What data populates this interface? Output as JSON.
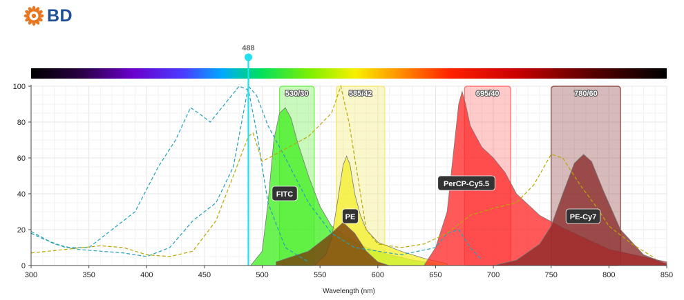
{
  "brand": {
    "name": "BD",
    "logo_icon": "bd-sunburst-logo-icon",
    "logo_color": "#e87722",
    "text_color": "#1f4e98"
  },
  "chart_data": {
    "type": "area",
    "xlabel": "Wavelength (nm)",
    "ylabel": "",
    "xlim": [
      300,
      850
    ],
    "ylim": [
      0,
      100
    ],
    "x_ticks": [
      300,
      350,
      400,
      450,
      500,
      550,
      600,
      650,
      700,
      750,
      800,
      850
    ],
    "y_ticks": [
      0,
      20,
      40,
      60,
      80,
      100
    ],
    "grid": true,
    "laser": {
      "wavelength": 488,
      "label": "488",
      "color": "#22e0ee"
    },
    "filters": [
      {
        "label": "530/30",
        "center": 530,
        "width": 30,
        "color": "#66ee44"
      },
      {
        "label": "585/42",
        "center": 585,
        "width": 42,
        "color": "#f2e866"
      },
      {
        "label": "695/40",
        "center": 695,
        "width": 40,
        "color": "#ff6666"
      },
      {
        "label": "780/60",
        "center": 780,
        "width": 60,
        "color": "#8b3a3a"
      }
    ],
    "emission_series": [
      {
        "name": "FITC",
        "color": "#44ee22",
        "x": [
          490,
          500,
          505,
          510,
          515,
          520,
          525,
          530,
          540,
          550,
          560,
          575,
          590,
          610,
          630,
          650
        ],
        "y": [
          0,
          8,
          35,
          70,
          85,
          88,
          82,
          70,
          50,
          33,
          22,
          15,
          10,
          6,
          3,
          1
        ]
      },
      {
        "name": "PE",
        "color": "#f5f032",
        "x": [
          545,
          555,
          560,
          565,
          570,
          573,
          576,
          580,
          585,
          590,
          600,
          620,
          640,
          660
        ],
        "y": [
          0,
          6,
          15,
          35,
          56,
          61,
          56,
          40,
          28,
          20,
          13,
          8,
          4,
          1
        ]
      },
      {
        "name": "PerCP-Cy5.5",
        "color": "#ff2a2a",
        "x": [
          640,
          650,
          660,
          665,
          670,
          673,
          676,
          680,
          690,
          700,
          710,
          720,
          740,
          760,
          780,
          800,
          850
        ],
        "y": [
          0,
          10,
          30,
          60,
          90,
          97,
          90,
          78,
          66,
          60,
          52,
          40,
          28,
          21,
          15,
          9,
          2
        ]
      },
      {
        "name": "PE-Cy7",
        "color": "#8b2a2a",
        "x": [
          700,
          720,
          740,
          750,
          760,
          770,
          778,
          785,
          795,
          810,
          830,
          850
        ],
        "y": [
          0,
          3,
          12,
          22,
          40,
          57,
          62,
          58,
          42,
          20,
          6,
          1
        ]
      },
      {
        "name": "",
        "color": "#7a3a0a",
        "x": [
          512,
          540,
          560,
          570,
          580,
          590,
          600,
          610
        ],
        "y": [
          2,
          8,
          18,
          24,
          18,
          8,
          2,
          0
        ]
      }
    ],
    "excitation_series": [
      {
        "name": "",
        "color": "#22a0b8",
        "x": [
          300,
          320,
          340,
          360,
          380,
          400,
          420,
          440,
          450,
          460,
          475,
          488,
          495,
          505,
          520,
          540,
          560,
          580,
          600,
          620,
          650,
          660,
          670,
          680,
          690
        ],
        "y": [
          19,
          12,
          9,
          8,
          7,
          5,
          10,
          25,
          30,
          35,
          55,
          100,
          95,
          78,
          60,
          35,
          18,
          10,
          8,
          6,
          10,
          18,
          20,
          10,
          3
        ]
      },
      {
        "name": "",
        "color": "#22a0b8",
        "x": [
          300,
          310,
          330,
          350,
          370,
          390,
          410,
          425,
          438,
          445,
          455,
          470,
          480,
          488,
          495,
          505,
          520,
          540
        ],
        "y": [
          18,
          15,
          10,
          10,
          20,
          30,
          55,
          70,
          88,
          85,
          80,
          92,
          100,
          98,
          75,
          35,
          10,
          2
        ]
      },
      {
        "name": "",
        "color": "#b8a800",
        "x": [
          300,
          330,
          360,
          380,
          400,
          420,
          440,
          460,
          475,
          488,
          492,
          500,
          520,
          540,
          560,
          568,
          575,
          580,
          590,
          600,
          620,
          640,
          660,
          680,
          700,
          720,
          735,
          750,
          760,
          775,
          790,
          800,
          820,
          840
        ],
        "y": [
          7,
          9,
          11,
          10,
          6,
          5,
          8,
          25,
          50,
          72,
          74,
          58,
          65,
          72,
          85,
          100,
          80,
          60,
          20,
          12,
          10,
          12,
          18,
          28,
          32,
          35,
          45,
          62,
          60,
          45,
          32,
          22,
          12,
          4
        ]
      }
    ]
  }
}
